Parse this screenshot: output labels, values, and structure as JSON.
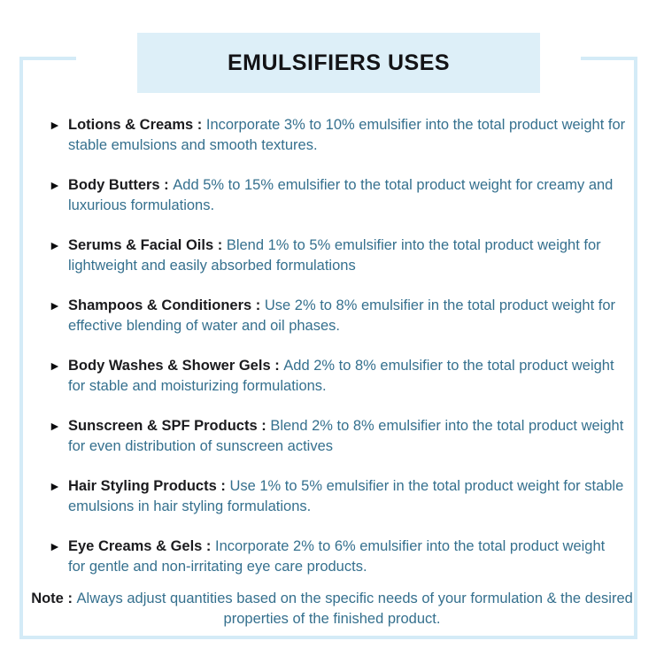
{
  "title": "EMULSIFIERS USES",
  "bullet": "►",
  "colors": {
    "accent_light_blue": "#ddeff8",
    "frame_border": "#d4ebf7",
    "label_dark": "#1b1b1e",
    "description_teal": "#35708e"
  },
  "items": [
    {
      "label": "Lotions & Creams : ",
      "text": "Incorporate 3% to 10% emulsifier into the total product weight for stable emulsions and smooth textures."
    },
    {
      "label": "Body Butters : ",
      "text": "Add 5% to 15% emulsifier to the total product weight for creamy and luxurious formulations."
    },
    {
      "label": "Serums & Facial Oils : ",
      "text": "Blend 1% to 5% emulsifier into the total product weight for lightweight and easily absorbed formulations"
    },
    {
      "label": "Shampoos & Conditioners : ",
      "text": "Use 2% to 8% emulsifier in the total product weight for effective blending of water and oil phases."
    },
    {
      "label": "Body Washes & Shower Gels : ",
      "text": "Add 2% to 8% emulsifier to the total product weight for stable and moisturizing formulations."
    },
    {
      "label": "Sunscreen & SPF Products : ",
      "text": "Blend 2% to 8% emulsifier into the total product weight for even distribution of sunscreen actives"
    },
    {
      "label": "Hair Styling Products : ",
      "text": "Use 1% to 5% emulsifier in the total product weight for stable emulsions in hair styling formulations."
    },
    {
      "label": "Eye Creams & Gels : ",
      "text": "Incorporate 2% to 6% emulsifier into the total product weight for gentle and non-irritating eye care products."
    }
  ],
  "note": {
    "label": "Note : ",
    "text": "Always adjust quantities based on the specific needs of your formulation & the desired properties of the finished product."
  }
}
